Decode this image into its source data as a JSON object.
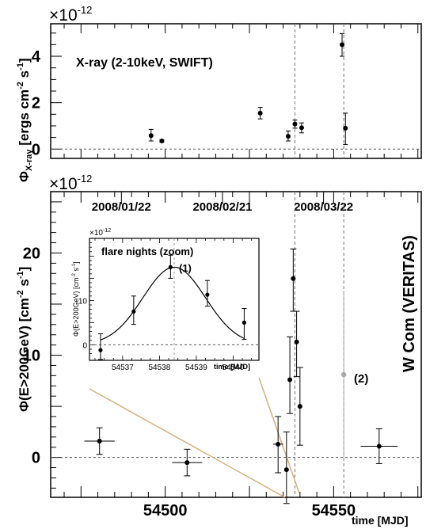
{
  "chart_data": [
    {
      "type": "scatter",
      "title": "X-ray (2-10keV, SWIFT)",
      "ylabel": "ΦX-ray [ergs cm-2 s-1]",
      "ylabel_main": "Φ",
      "ylabel_sub": "X-ray",
      "ylabel_rest": " [ergs cm",
      "ylabel_sup1": "-2",
      "ylabel_mid": " s",
      "ylabel_sup2": "-1",
      "ylabel_end": "]",
      "exponent_base": "×10",
      "exponent_power": "-12",
      "xlim": [
        54466,
        54576
      ],
      "ylim": [
        -0.4,
        5.4
      ],
      "yticks": [
        0,
        2,
        4
      ],
      "yticklabels": [
        "0",
        "2",
        "4"
      ],
      "grid": false,
      "points": [
        {
          "x": 54495.8,
          "y": 0.58,
          "ylo": 0.35,
          "yhi": 0.85
        },
        {
          "x": 54499.0,
          "y": 0.35,
          "ylo": 0.3,
          "yhi": 0.4
        },
        {
          "x": 54528.2,
          "y": 1.55,
          "ylo": 1.3,
          "yhi": 1.8
        },
        {
          "x": 54536.5,
          "y": 0.55,
          "ylo": 0.35,
          "yhi": 0.78
        },
        {
          "x": 54538.5,
          "y": 1.08,
          "ylo": 0.9,
          "yhi": 1.25
        },
        {
          "x": 54540.5,
          "y": 0.92,
          "ylo": 0.7,
          "yhi": 1.13
        },
        {
          "x": 54552.5,
          "y": 4.5,
          "ylo": 4.0,
          "yhi": 4.98
        },
        {
          "x": 54553.5,
          "y": 0.9,
          "ylo": 0.2,
          "yhi": 1.55
        }
      ]
    },
    {
      "type": "scatter",
      "ylabel": "Φ(E>200GeV) [cm-2 s-1]",
      "ylabel_main": "Φ(E>200GeV) [cm",
      "ylabel_sup1": "-2",
      "ylabel_mid": " s",
      "ylabel_sup2": "-1",
      "ylabel_end": "]",
      "xlabel": "time [MJD]",
      "exponent_base": "×10",
      "exponent_power": "-12",
      "side_label": "W Com (VERITAS)",
      "xlim": [
        54466,
        54576
      ],
      "ylim": [
        -3.9,
        26
      ],
      "xticks": [
        54500,
        54550
      ],
      "xticklabels": [
        "54500",
        "54550"
      ],
      "yticks": [
        0,
        10,
        20
      ],
      "yticklabels": [
        "0",
        "10",
        "20"
      ],
      "top_axis_dates": [
        {
          "x": 54487,
          "label": "2008/01/22"
        },
        {
          "x": 54517,
          "label": "2008/02/21"
        },
        {
          "x": 54547,
          "label": "2008/03/22"
        }
      ],
      "points": [
        {
          "x": 54480.5,
          "y": 1.6,
          "ylo": 0.3,
          "yhi": 2.9,
          "xlo": 54476.0,
          "xhi": 54485.0
        },
        {
          "x": 54506.5,
          "y": -0.5,
          "ylo": -1.8,
          "yhi": 0.8,
          "xlo": 54502.0,
          "xhi": 54511.0
        },
        {
          "x": 54533.5,
          "y": 1.3,
          "ylo": -1.5,
          "yhi": 4.0,
          "xlo": 54532.0,
          "xhi": 54535.0
        },
        {
          "x": 54536.0,
          "y": -1.2,
          "ylo": -4.5,
          "yhi": 2.5
        },
        {
          "x": 54537.0,
          "y": 7.6,
          "ylo": 4.3,
          "yhi": 11.8
        },
        {
          "x": 54538.0,
          "y": 17.5,
          "ylo": 14.3,
          "yhi": 20.4
        },
        {
          "x": 54539.0,
          "y": 11.3,
          "ylo": 7.9,
          "yhi": 14.3
        },
        {
          "x": 54540.0,
          "y": 5.0,
          "ylo": 1.2,
          "yhi": 8.8
        },
        {
          "x": 54563.5,
          "y": 1.1,
          "ylo": -0.6,
          "yhi": 2.8,
          "xlo": 54558.0,
          "xhi": 54569.0
        }
      ],
      "special_point": {
        "x": 54553.0,
        "y": 8.1,
        "ylo": 0.0,
        "yhi": 16.3,
        "color": "#a8a8a8",
        "label": "(2)"
      },
      "vlines": [
        54538.5,
        54553.0
      ],
      "colors": {
        "data": "#000000",
        "zoom_line": "#d7b07f",
        "annotation": "#e01a1a",
        "special": "#a8a8a8"
      }
    },
    {
      "type": "line",
      "title": "flare nights (zoom)",
      "ylabel": "Φ(E>200GeV) [cm-2 s-1]",
      "ylabel_main": "Φ(E>200GeV) [cm",
      "ylabel_sup1": "-2",
      "ylabel_mid": " s",
      "ylabel_sup2": "-1",
      "ylabel_end": "]",
      "xlabel": "time [MJD]",
      "exponent_base": "×10",
      "exponent_power": "-12",
      "xlim": [
        54536.1,
        54540.7
      ],
      "ylim": [
        -3.5,
        24
      ],
      "xticks": [
        54537,
        54538,
        54539,
        54540
      ],
      "xticklabels": [
        "54537",
        "54538",
        "54539",
        "54540"
      ],
      "yticks": [
        0,
        10
      ],
      "yticklabels": [
        "0",
        "10"
      ],
      "points": [
        {
          "x": 54536.4,
          "y": -1.2,
          "ylo": -3.3,
          "yhi": 2.5
        },
        {
          "x": 54537.3,
          "y": 7.5,
          "ylo": 4.6,
          "yhi": 11.0
        },
        {
          "x": 54538.3,
          "y": 17.5,
          "ylo": 15.0,
          "yhi": 20.2
        },
        {
          "x": 54539.3,
          "y": 11.3,
          "ylo": 8.7,
          "yhi": 14.5
        },
        {
          "x": 54540.3,
          "y": 5.0,
          "ylo": 1.2,
          "yhi": 8.2
        }
      ],
      "fit_curve": {
        "amplitude": 17.5,
        "center": 54538.4,
        "sigma": 0.85
      },
      "vline": 54538.4,
      "annotation": "(1)"
    }
  ]
}
